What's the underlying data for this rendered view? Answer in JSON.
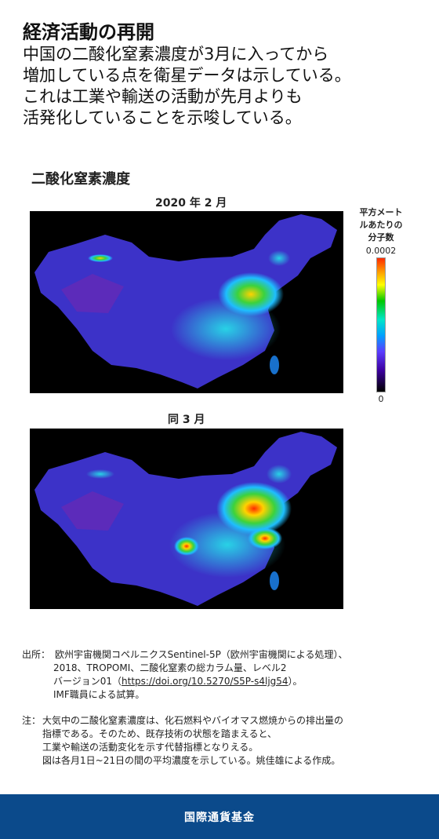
{
  "header": {
    "title": "経済活動の再開",
    "lines": [
      "中国の二酸化窒素濃度が3月に入ってから",
      "増加している点を衛星データは示している。",
      "これは工業や輸送の活動が先月よりも",
      "活発化していることを示唆している。"
    ]
  },
  "map": {
    "heading": "二酸化窒素濃度",
    "panel1_label": "2020 年 2 月",
    "panel2_label": "同 3 月",
    "legend_title_lines": [
      "平方メート",
      "ルあたりの",
      "分子数"
    ],
    "legend_max": "0.0002",
    "legend_min": "0",
    "colors": {
      "background": "#000000",
      "low": "#3c32c8",
      "high": "#ff2a00"
    }
  },
  "notes": {
    "source_label": "出所：",
    "source_lines": [
      "欧州宇宙機関コペルニクスSentinel-5P（欧州宇宙機関による処理）、",
      "2018、TROPOMI、二酸化窒素の総カラム量、レベル2",
      "バージョン01（",
      "https://doi.org/10.5270/S5P-s4ljg54",
      "）。",
      "IMF職員による試算。"
    ],
    "note_label": "注：",
    "note_lines": [
      "大気中の二酸化窒素濃度は、化石燃料やバイオマス燃焼からの排出量の",
      "指標である。そのため、既存技術の状態を踏まえると、",
      "工業や輸送の活動変化を示す代替指標となりえる。",
      "図は各月1日~21日の間の平均濃度を示している。姚佳雄による作成。"
    ]
  },
  "footer": {
    "label": "国際通貨基金"
  }
}
